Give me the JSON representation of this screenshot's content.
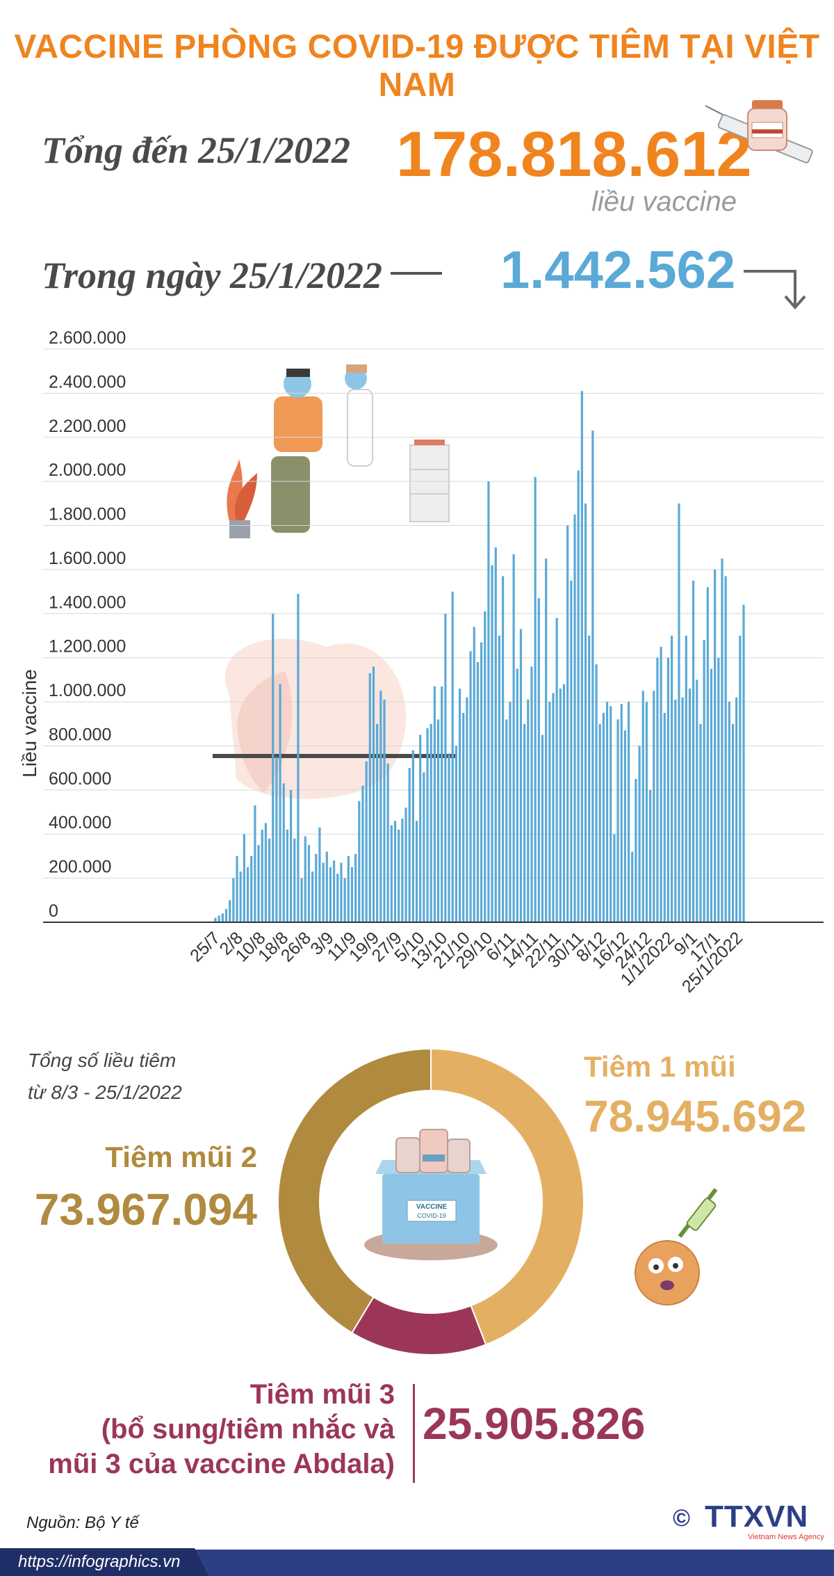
{
  "title": "VACCINE PHÒNG COVID-19 ĐƯỢC TIÊM TẠI VIỆT NAM",
  "total": {
    "label": "Tổng đến 25/1/2022",
    "value": "178.818.612",
    "unit": "liều vaccine"
  },
  "daily": {
    "label": "Trong ngày 25/1/2022",
    "value": "1.442.562"
  },
  "chart_data": {
    "type": "bar",
    "ylabel": "Liều vaccine",
    "xlabel": "",
    "ylim": [
      0,
      2600000
    ],
    "yticks": [
      "0",
      "200.000",
      "400.000",
      "600.000",
      "800.000",
      "1.000.000",
      "1.200.000",
      "1.400.000",
      "1.600.000",
      "1.800.000",
      "2.000.000",
      "2.200.000",
      "2.400.000",
      "2.600.000"
    ],
    "xticks": [
      "25/7",
      "2/8",
      "10/8",
      "18/8",
      "26/8",
      "3/9",
      "11/9",
      "19/9",
      "27/9",
      "5/10",
      "13/10",
      "21/10",
      "29/10",
      "6/11",
      "14/11",
      "22/11",
      "30/11",
      "8/12",
      "16/12",
      "24/12",
      "1/1/2022",
      "9/1",
      "17/1",
      "25/1/2022"
    ],
    "grid": true,
    "color": "#5aa9d6",
    "values": [
      20000,
      30000,
      40000,
      60000,
      100000,
      200000,
      300000,
      230000,
      400000,
      250000,
      300000,
      530000,
      350000,
      420000,
      450000,
      380000,
      1400000,
      750000,
      1080000,
      630000,
      420000,
      600000,
      380000,
      1490000,
      200000,
      390000,
      350000,
      230000,
      310000,
      430000,
      270000,
      320000,
      250000,
      280000,
      220000,
      270000,
      200000,
      300000,
      250000,
      310000,
      550000,
      620000,
      730000,
      1130000,
      1160000,
      900000,
      1050000,
      1010000,
      720000,
      440000,
      460000,
      420000,
      470000,
      520000,
      700000,
      780000,
      460000,
      850000,
      680000,
      880000,
      900000,
      1070000,
      920000,
      1070000,
      1400000,
      760000,
      1500000,
      800000,
      1060000,
      950000,
      1020000,
      1230000,
      1340000,
      1180000,
      1270000,
      1410000,
      2000000,
      1620000,
      1700000,
      1300000,
      1570000,
      920000,
      1000000,
      1670000,
      1150000,
      1330000,
      900000,
      1010000,
      1160000,
      2020000,
      1470000,
      850000,
      1650000,
      1000000,
      1040000,
      1380000,
      1060000,
      1080000,
      1800000,
      1550000,
      1850000,
      2050000,
      2410000,
      1900000,
      1300000,
      2230000,
      1170000,
      900000,
      950000,
      1000000,
      980000,
      400000,
      920000,
      990000,
      870000,
      1000000,
      320000,
      650000,
      800000,
      1050000,
      1000000,
      600000,
      1050000,
      1200000,
      1250000,
      950000,
      1200000,
      1300000,
      1010000,
      1900000,
      1020000,
      1300000,
      1060000,
      1550000,
      1100000,
      900000,
      1280000,
      1520000,
      1150000,
      1600000,
      1200000,
      1650000,
      1570000,
      1000000,
      900000,
      1020000,
      1300000,
      1440000
    ]
  },
  "donut": {
    "caption_line1": "Tổng số liều tiêm",
    "caption_line2": "từ 8/3 - 25/1/2022",
    "colors": {
      "dose1": "#e3b063",
      "dose2": "#b08a3e",
      "dose3": "#9b3658"
    },
    "dose1": {
      "label": "Tiêm 1 mũi",
      "value": "78.945.692",
      "amount": 78945692
    },
    "dose2": {
      "label": "Tiêm mũi 2",
      "value": "73.967.094",
      "amount": 73967094
    },
    "dose3": {
      "label_line1": "Tiêm mũi 3",
      "label_line2": "(bổ sung/tiêm nhắc và",
      "label_line3": "mũi 3 của vaccine Abdala)",
      "value": "25.905.826",
      "amount": 25905826
    },
    "box_label_1": "VACCINE",
    "box_label_2": "COVID-19"
  },
  "source": "Nguồn: Bộ Y tế",
  "footer": {
    "url": "https://infographics.vn",
    "agency": "TTXVN",
    "agency_sub": "Vietnam News Agency",
    "copyright": "©"
  }
}
